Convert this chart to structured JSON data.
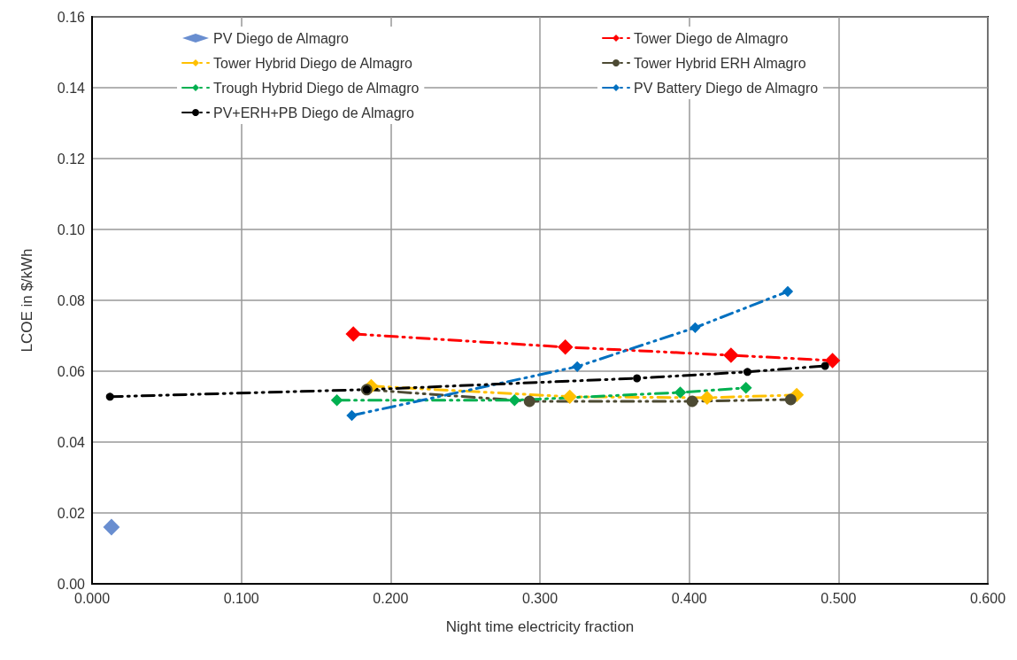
{
  "chart_data": {
    "type": "line",
    "xlabel": "Night time electricity fraction",
    "ylabel": "LCOE in $/kWh",
    "xlim": [
      0,
      0.6
    ],
    "xticks": [
      {
        "value": 0,
        "label": "0.000"
      },
      {
        "value": 0.1,
        "label": "0.100"
      },
      {
        "value": 0.2,
        "label": "0.200"
      },
      {
        "value": 0.3,
        "label": "0.300"
      },
      {
        "value": 0.4,
        "label": "0.400"
      },
      {
        "value": 0.5,
        "label": "0.500"
      },
      {
        "value": 0.6,
        "label": "0.600"
      }
    ],
    "ylim": [
      0,
      0.16
    ],
    "yticks": [
      {
        "value": 0,
        "label": "0.00"
      },
      {
        "value": 0.02,
        "label": "0.02"
      },
      {
        "value": 0.04,
        "label": "0.04"
      },
      {
        "value": 0.06,
        "label": "0.06"
      },
      {
        "value": 0.08,
        "label": "0.08"
      },
      {
        "value": 0.1,
        "label": "0.10"
      },
      {
        "value": 0.12,
        "label": "0.12"
      },
      {
        "value": 0.14,
        "label": "0.14"
      },
      {
        "value": 0.16,
        "label": "0.16"
      }
    ],
    "grid": true,
    "legend": "top",
    "line_style": "dashed",
    "series": [
      {
        "name": "PV Diego de Almagro",
        "type": "scatter",
        "marker": "diamond",
        "color": "#4472c4",
        "x": [
          0.013
        ],
        "values": [
          0.016
        ]
      },
      {
        "name": "Tower Diego de Almagro",
        "marker": "diamond",
        "color": "#ff0000",
        "x": [
          0.175,
          0.317,
          0.428,
          0.496
        ],
        "values": [
          0.0705,
          0.0668,
          0.0645,
          0.063
        ]
      },
      {
        "name": "Tower Hybrid Diego de Almagro",
        "marker": "diamond",
        "color": "#ffc000",
        "x": [
          0.187,
          0.32,
          0.412,
          0.472
        ],
        "values": [
          0.0558,
          0.0528,
          0.0525,
          0.0533
        ]
      },
      {
        "name": "Tower Hybrid ERH Almagro",
        "marker": "circle",
        "color": "#4d4a33",
        "x": [
          0.184,
          0.293,
          0.402,
          0.468
        ],
        "values": [
          0.0548,
          0.0515,
          0.0515,
          0.052
        ]
      },
      {
        "name": "Trough Hybrid Diego de Almagro",
        "marker": "diamond",
        "color": "#00b050",
        "x": [
          0.164,
          0.283,
          0.394,
          0.438
        ],
        "values": [
          0.0518,
          0.0518,
          0.054,
          0.0553
        ]
      },
      {
        "name": "PV Battery Diego de Almagro",
        "marker": "diamond",
        "color": "#0070c0",
        "x": [
          0.174,
          0.325,
          0.404,
          0.466
        ],
        "values": [
          0.0475,
          0.0613,
          0.0723,
          0.0825
        ]
      },
      {
        "name": "PV+ERH+PB Diego de Almagro",
        "marker": "circle",
        "color": "#000000",
        "x": [
          0.012,
          0.184,
          0.365,
          0.439,
          0.491
        ],
        "values": [
          0.0528,
          0.0548,
          0.058,
          0.0598,
          0.0615
        ]
      }
    ]
  }
}
